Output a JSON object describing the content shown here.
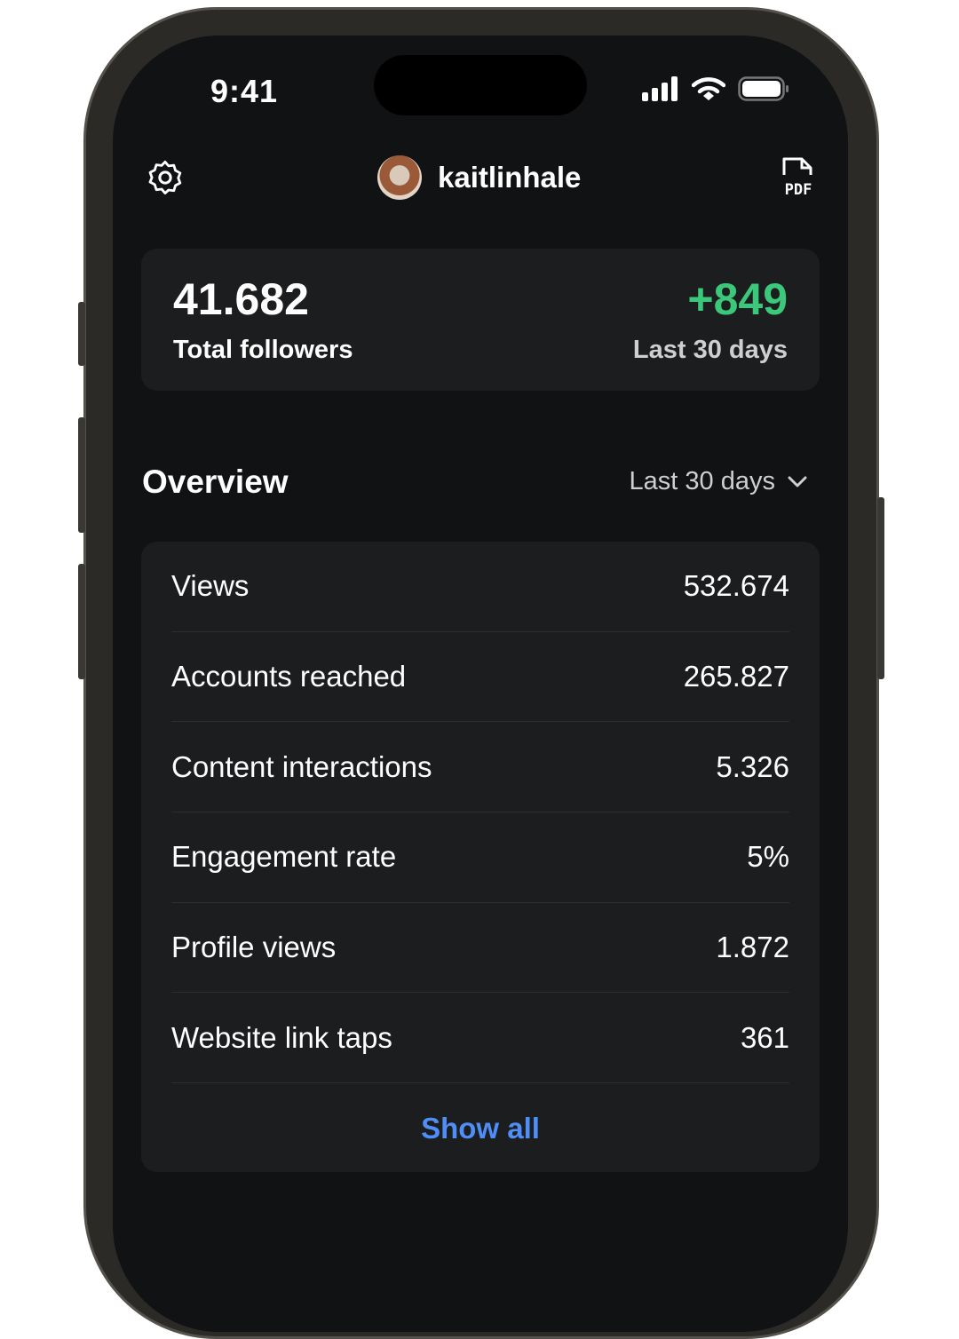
{
  "status": {
    "time": "9:41"
  },
  "header": {
    "username": "kaitlinhale",
    "pdf_label": "PDF"
  },
  "followers": {
    "total": "41.682",
    "total_label": "Total followers",
    "change": "+849",
    "change_label": "Last 30 days"
  },
  "overview": {
    "title": "Overview",
    "range": "Last 30 days",
    "rows": [
      {
        "label": "Views",
        "value": "532.674"
      },
      {
        "label": "Accounts reached",
        "value": "265.827"
      },
      {
        "label": "Content interactions",
        "value": "5.326"
      },
      {
        "label": "Engagement rate",
        "value": "5%"
      },
      {
        "label": "Profile views",
        "value": "1.872"
      },
      {
        "label": "Website link taps",
        "value": "361"
      }
    ],
    "show_all": "Show all"
  },
  "colors": {
    "positive": "#3cc87a",
    "link": "#4f8ef7"
  }
}
